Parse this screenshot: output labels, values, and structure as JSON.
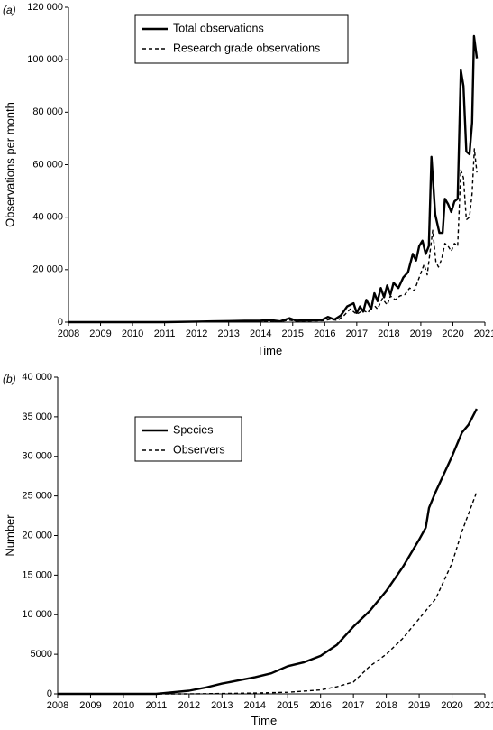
{
  "chart_data": [
    {
      "type": "line",
      "panel_label": "(a)",
      "xlabel": "Time",
      "ylabel": "Observations per month",
      "xlim": [
        2008,
        2021
      ],
      "ylim": [
        0,
        120000
      ],
      "x_ticks": [
        2008,
        2009,
        2010,
        2011,
        2012,
        2013,
        2014,
        2015,
        2016,
        2017,
        2018,
        2019,
        2020,
        2021
      ],
      "x_tick_labels": [
        "2008",
        "2009",
        "2010",
        "2011",
        "2012",
        "2013",
        "2014",
        "2015",
        "2016",
        "2017",
        "2018",
        "2019",
        "2020",
        "2021"
      ],
      "y_ticks": [
        0,
        20000,
        40000,
        60000,
        80000,
        100000,
        120000
      ],
      "y_tick_labels": [
        "0",
        "20 000",
        "40 000",
        "60 000",
        "80 000",
        "100 000",
        "120 000"
      ],
      "grid": false,
      "legend_position": "top-center",
      "series": [
        {
          "name": "Total observations",
          "style": "solid",
          "color": "#000000",
          "points": [
            [
              2008.0,
              0
            ],
            [
              2011.0,
              0
            ],
            [
              2012.0,
              200
            ],
            [
              2012.5,
              300
            ],
            [
              2013.0,
              400
            ],
            [
              2013.5,
              500
            ],
            [
              2014.0,
              600
            ],
            [
              2014.3,
              800
            ],
            [
              2014.6,
              300
            ],
            [
              2014.9,
              1500
            ],
            [
              2015.1,
              600
            ],
            [
              2015.5,
              700
            ],
            [
              2015.9,
              800
            ],
            [
              2016.1,
              2000
            ],
            [
              2016.3,
              1000
            ],
            [
              2016.5,
              2500
            ],
            [
              2016.7,
              6000
            ],
            [
              2016.9,
              7200
            ],
            [
              2017.0,
              3500
            ],
            [
              2017.1,
              6000
            ],
            [
              2017.2,
              4000
            ],
            [
              2017.3,
              8500
            ],
            [
              2017.45,
              5000
            ],
            [
              2017.55,
              11000
            ],
            [
              2017.65,
              8000
            ],
            [
              2017.75,
              13000
            ],
            [
              2017.85,
              9500
            ],
            [
              2017.95,
              14000
            ],
            [
              2018.05,
              10500
            ],
            [
              2018.15,
              15000
            ],
            [
              2018.3,
              13000
            ],
            [
              2018.45,
              17000
            ],
            [
              2018.6,
              19000
            ],
            [
              2018.75,
              26000
            ],
            [
              2018.85,
              23500
            ],
            [
              2018.95,
              29000
            ],
            [
              2019.05,
              31000
            ],
            [
              2019.15,
              26000
            ],
            [
              2019.25,
              29000
            ],
            [
              2019.33,
              63000
            ],
            [
              2019.45,
              41000
            ],
            [
              2019.58,
              34000
            ],
            [
              2019.68,
              34000
            ],
            [
              2019.75,
              47000
            ],
            [
              2019.85,
              45000
            ],
            [
              2019.95,
              42000
            ],
            [
              2020.05,
              46000
            ],
            [
              2020.15,
              47000
            ],
            [
              2020.25,
              96000
            ],
            [
              2020.33,
              90000
            ],
            [
              2020.42,
              65000
            ],
            [
              2020.52,
              64000
            ],
            [
              2020.6,
              76000
            ],
            [
              2020.66,
              109000
            ],
            [
              2020.75,
              100500
            ]
          ]
        },
        {
          "name": "Research grade observations",
          "style": "dashed",
          "color": "#000000",
          "points": [
            [
              2008.0,
              0
            ],
            [
              2011.0,
              0
            ],
            [
              2012.0,
              100
            ],
            [
              2013.0,
              250
            ],
            [
              2014.0,
              350
            ],
            [
              2014.6,
              200
            ],
            [
              2014.9,
              800
            ],
            [
              2015.1,
              300
            ],
            [
              2016.0,
              600
            ],
            [
              2016.2,
              1200
            ],
            [
              2016.4,
              600
            ],
            [
              2016.6,
              2500
            ],
            [
              2016.8,
              5000
            ],
            [
              2017.0,
              3000
            ],
            [
              2017.2,
              4500
            ],
            [
              2017.35,
              3500
            ],
            [
              2017.5,
              7000
            ],
            [
              2017.65,
              5000
            ],
            [
              2017.8,
              9000
            ],
            [
              2017.95,
              6500
            ],
            [
              2018.05,
              10000
            ],
            [
              2018.2,
              8500
            ],
            [
              2018.35,
              10000
            ],
            [
              2018.5,
              10500
            ],
            [
              2018.65,
              13000
            ],
            [
              2018.8,
              12000
            ],
            [
              2018.95,
              17000
            ],
            [
              2019.1,
              22000
            ],
            [
              2019.2,
              18000
            ],
            [
              2019.3,
              28000
            ],
            [
              2019.37,
              35000
            ],
            [
              2019.47,
              23000
            ],
            [
              2019.55,
              21000
            ],
            [
              2019.65,
              24000
            ],
            [
              2019.75,
              30000
            ],
            [
              2019.85,
              29000
            ],
            [
              2019.95,
              27000
            ],
            [
              2020.05,
              30000
            ],
            [
              2020.15,
              29000
            ],
            [
              2020.25,
              58000
            ],
            [
              2020.33,
              55000
            ],
            [
              2020.42,
              39000
            ],
            [
              2020.52,
              40000
            ],
            [
              2020.6,
              49000
            ],
            [
              2020.67,
              66000
            ],
            [
              2020.75,
              57000
            ]
          ]
        }
      ]
    },
    {
      "type": "line",
      "panel_label": "(b)",
      "xlabel": "Time",
      "ylabel": "Number",
      "xlim": [
        2008,
        2021
      ],
      "ylim": [
        0,
        40000
      ],
      "x_ticks": [
        2008,
        2009,
        2010,
        2011,
        2012,
        2013,
        2014,
        2015,
        2016,
        2017,
        2018,
        2019,
        2020,
        2021
      ],
      "x_tick_labels": [
        "2008",
        "2009",
        "2010",
        "2011",
        "2012",
        "2013",
        "2014",
        "2015",
        "2016",
        "2017",
        "2018",
        "2019",
        "2020",
        "2021"
      ],
      "y_ticks": [
        0,
        5000,
        10000,
        15000,
        20000,
        25000,
        30000,
        35000,
        40000
      ],
      "y_tick_labels": [
        "0",
        "5000",
        "10 000",
        "15 000",
        "20 000",
        "25 000",
        "30 000",
        "35 000",
        "40 000"
      ],
      "grid": false,
      "legend_position": "top-left",
      "series": [
        {
          "name": "Species",
          "style": "solid",
          "color": "#000000",
          "points": [
            [
              2008.0,
              0
            ],
            [
              2011.0,
              0
            ],
            [
              2011.5,
              200
            ],
            [
              2012.0,
              400
            ],
            [
              2012.5,
              800
            ],
            [
              2013.0,
              1300
            ],
            [
              2013.5,
              1700
            ],
            [
              2014.0,
              2100
            ],
            [
              2014.5,
              2600
            ],
            [
              2015.0,
              3500
            ],
            [
              2015.5,
              4000
            ],
            [
              2016.0,
              4800
            ],
            [
              2016.5,
              6200
            ],
            [
              2017.0,
              8500
            ],
            [
              2017.5,
              10500
            ],
            [
              2018.0,
              13000
            ],
            [
              2018.5,
              16000
            ],
            [
              2019.0,
              19500
            ],
            [
              2019.2,
              21000
            ],
            [
              2019.3,
              23500
            ],
            [
              2019.5,
              25500
            ],
            [
              2020.0,
              30000
            ],
            [
              2020.3,
              33000
            ],
            [
              2020.5,
              34000
            ],
            [
              2020.75,
              36000
            ]
          ]
        },
        {
          "name": "Observers",
          "style": "dashed",
          "color": "#000000",
          "points": [
            [
              2008.0,
              0
            ],
            [
              2012.0,
              0
            ],
            [
              2013.0,
              50
            ],
            [
              2014.0,
              100
            ],
            [
              2015.0,
              200
            ],
            [
              2016.0,
              500
            ],
            [
              2016.5,
              900
            ],
            [
              2017.0,
              1500
            ],
            [
              2017.5,
              3500
            ],
            [
              2018.0,
              5000
            ],
            [
              2018.5,
              7000
            ],
            [
              2019.0,
              9500
            ],
            [
              2019.5,
              12000
            ],
            [
              2020.0,
              16500
            ],
            [
              2020.3,
              20500
            ],
            [
              2020.75,
              25500
            ]
          ]
        }
      ]
    }
  ]
}
